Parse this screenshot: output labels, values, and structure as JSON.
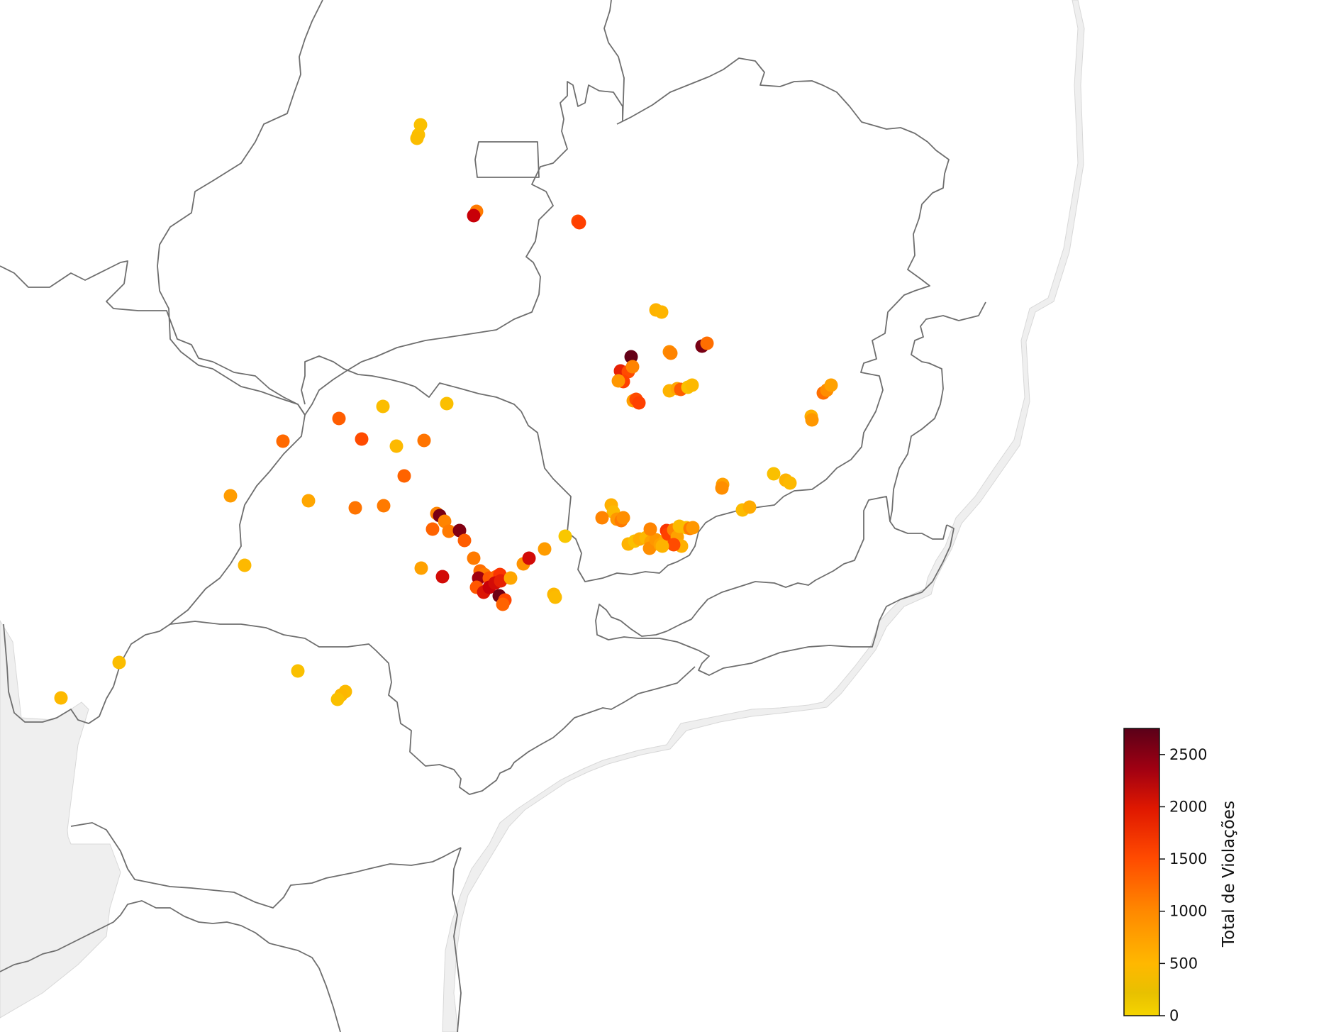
{
  "colorbar": {
    "label": "Total de Violações",
    "min": 0,
    "max": 2750,
    "ticks": [
      "0",
      "500",
      "1000",
      "1500",
      "2000",
      "2500"
    ],
    "tick_values": [
      0,
      500,
      1000,
      1500,
      2000,
      2500
    ],
    "colors": [
      "#f5d400",
      "#ffb000",
      "#ff7a00",
      "#ff3a00",
      "#c80008",
      "#5a0018"
    ]
  },
  "points": [
    [
      593,
      176,
      300
    ],
    [
      590,
      190,
      320
    ],
    [
      588,
      195,
      350
    ],
    [
      672,
      298,
      1100
    ],
    [
      668,
      304,
      2200
    ],
    [
      815,
      312,
      1500
    ],
    [
      817,
      314,
      1600
    ],
    [
      925,
      437,
      500
    ],
    [
      933,
      440,
      480
    ],
    [
      890,
      503,
      2700
    ],
    [
      875,
      523,
      1900
    ],
    [
      886,
      524,
      1500
    ],
    [
      892,
      517,
      1000
    ],
    [
      879,
      538,
      1600
    ],
    [
      872,
      537,
      800
    ],
    [
      893,
      565,
      700
    ],
    [
      897,
      563,
      1500
    ],
    [
      901,
      568,
      1600
    ],
    [
      944,
      496,
      900
    ],
    [
      946,
      498,
      1000
    ],
    [
      990,
      488,
      2600
    ],
    [
      997,
      484,
      1200
    ],
    [
      944,
      551,
      500
    ],
    [
      955,
      548,
      650
    ],
    [
      960,
      549,
      1350
    ],
    [
      970,
      546,
      300
    ],
    [
      976,
      543,
      420
    ],
    [
      540,
      573,
      350
    ],
    [
      630,
      569,
      320
    ],
    [
      478,
      590,
      1350
    ],
    [
      510,
      619,
      1500
    ],
    [
      559,
      629,
      420
    ],
    [
      598,
      621,
      1150
    ],
    [
      399,
      622,
      1250
    ],
    [
      570,
      671,
      1300
    ],
    [
      325,
      699,
      750
    ],
    [
      435,
      706,
      650
    ],
    [
      501,
      716,
      1150
    ],
    [
      541,
      713,
      1100
    ],
    [
      616,
      724,
      1000
    ],
    [
      620,
      727,
      2600
    ],
    [
      627,
      735,
      1000
    ],
    [
      610,
      746,
      1300
    ],
    [
      633,
      749,
      1100
    ],
    [
      648,
      748,
      2550
    ],
    [
      655,
      762,
      1350
    ],
    [
      668,
      787,
      1100
    ],
    [
      345,
      797,
      420
    ],
    [
      594,
      801,
      700
    ],
    [
      624,
      813,
      2100
    ],
    [
      738,
      795,
      850
    ],
    [
      746,
      787,
      2100
    ],
    [
      768,
      774,
      750
    ],
    [
      797,
      756,
      200
    ],
    [
      677,
      805,
      1200
    ],
    [
      683,
      810,
      1100
    ],
    [
      675,
      815,
      2400
    ],
    [
      690,
      815,
      1400
    ],
    [
      700,
      813,
      1300
    ],
    [
      705,
      810,
      1700
    ],
    [
      672,
      828,
      1400
    ],
    [
      682,
      835,
      2000
    ],
    [
      690,
      828,
      2200
    ],
    [
      698,
      822,
      2100
    ],
    [
      706,
      819,
      1900
    ],
    [
      720,
      815,
      650
    ],
    [
      704,
      840,
      2650
    ],
    [
      712,
      846,
      1550
    ],
    [
      709,
      852,
      1300
    ],
    [
      781,
      838,
      450
    ],
    [
      783,
      842,
      380
    ],
    [
      862,
      712,
      550
    ],
    [
      865,
      722,
      400
    ],
    [
      870,
      732,
      800
    ],
    [
      876,
      734,
      1100
    ],
    [
      879,
      730,
      900
    ],
    [
      849,
      730,
      1000
    ],
    [
      886,
      767,
      500
    ],
    [
      895,
      763,
      300
    ],
    [
      902,
      760,
      600
    ],
    [
      911,
      758,
      450
    ],
    [
      918,
      764,
      700
    ],
    [
      916,
      773,
      900
    ],
    [
      925,
      761,
      800
    ],
    [
      931,
      768,
      700
    ],
    [
      938,
      762,
      650
    ],
    [
      917,
      746,
      1000
    ],
    [
      940,
      748,
      1700
    ],
    [
      942,
      753,
      1600
    ],
    [
      950,
      747,
      1000
    ],
    [
      955,
      757,
      700
    ],
    [
      958,
      742,
      400
    ],
    [
      961,
      770,
      550
    ],
    [
      968,
      744,
      350
    ],
    [
      973,
      745,
      1100
    ],
    [
      977,
      744,
      800
    ],
    [
      950,
      768,
      1500
    ],
    [
      934,
      770,
      500
    ],
    [
      1019,
      683,
      700
    ],
    [
      1018,
      688,
      900
    ],
    [
      1047,
      719,
      400
    ],
    [
      1057,
      715,
      600
    ],
    [
      1091,
      668,
      300
    ],
    [
      1108,
      677,
      500
    ],
    [
      1114,
      681,
      420
    ],
    [
      1144,
      587,
      550
    ],
    [
      1145,
      592,
      800
    ],
    [
      1161,
      554,
      1200
    ],
    [
      1166,
      550,
      900
    ],
    [
      1172,
      543,
      700
    ],
    [
      168,
      934,
      350
    ],
    [
      420,
      946,
      300
    ],
    [
      487,
      975,
      400
    ],
    [
      481,
      980,
      450
    ],
    [
      476,
      986,
      300
    ],
    [
      86,
      984,
      420
    ]
  ]
}
